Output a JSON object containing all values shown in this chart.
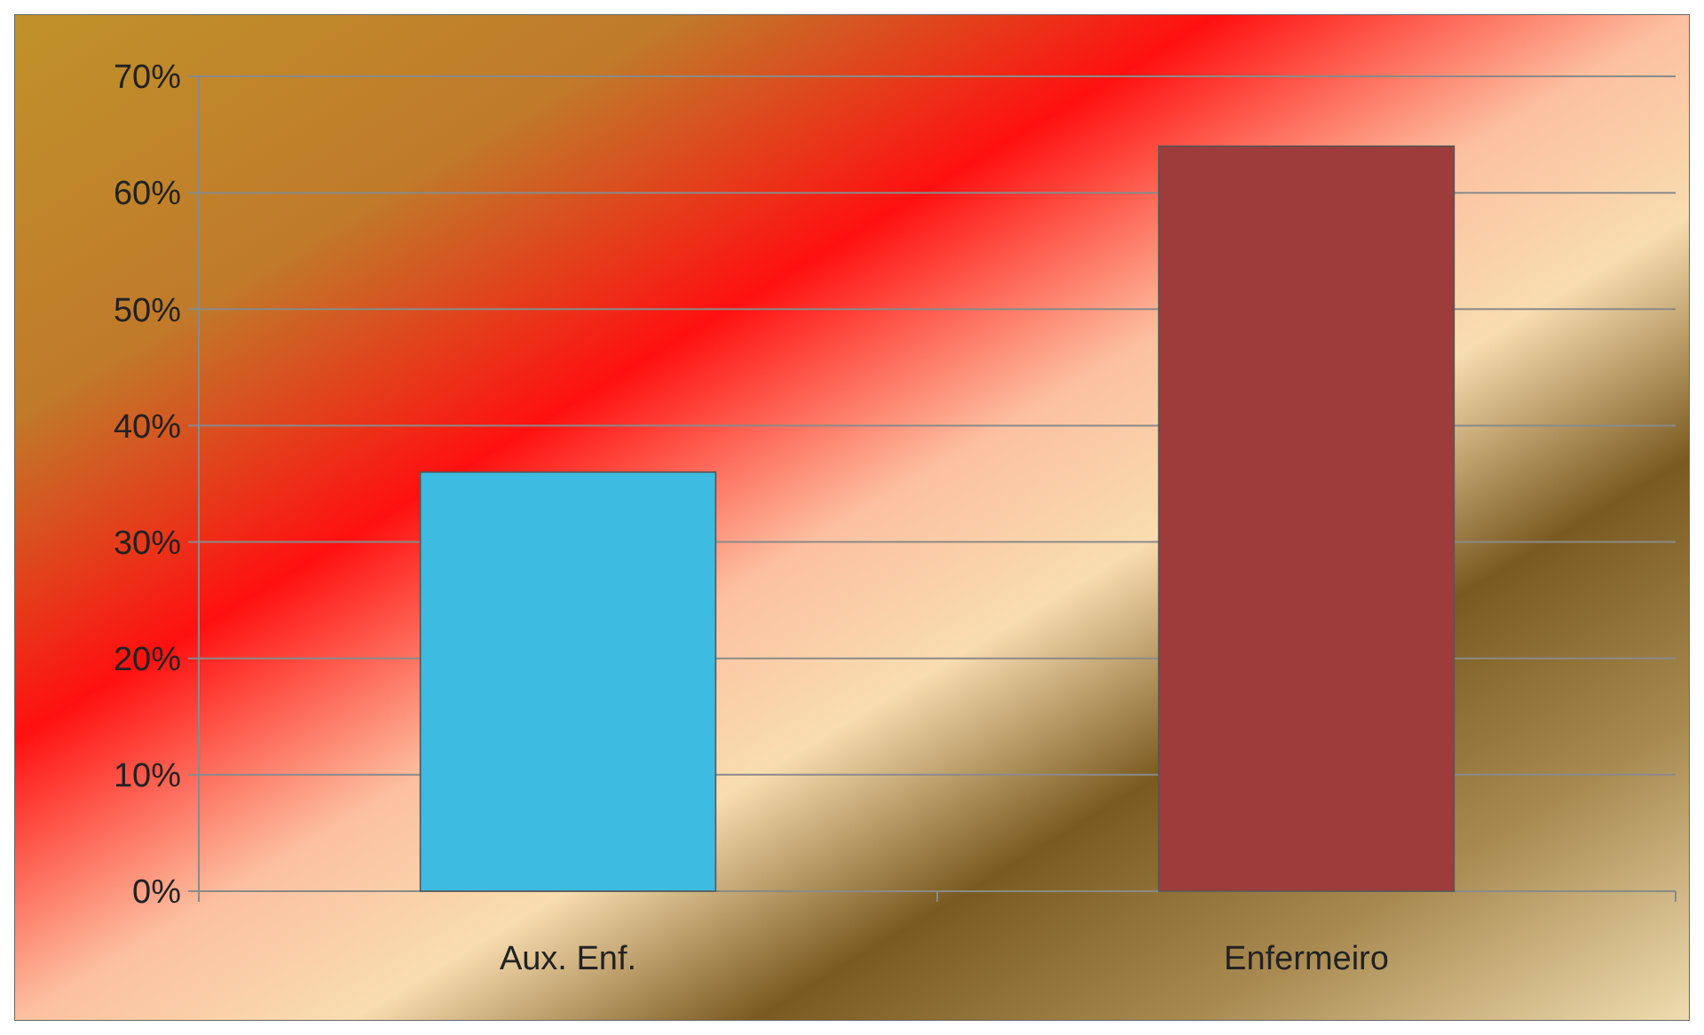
{
  "chart_data": {
    "type": "bar",
    "categories": [
      "Aux. Enf.",
      "Enfermeiro"
    ],
    "values": [
      36,
      64
    ],
    "colors": [
      "#3dbbe0",
      "#9e3c3c"
    ],
    "ylim": [
      0,
      70
    ],
    "yticks": [
      {
        "value": 0,
        "label": "0%"
      },
      {
        "value": 10,
        "label": "10%"
      },
      {
        "value": 20,
        "label": "20%"
      },
      {
        "value": 30,
        "label": "30%"
      },
      {
        "value": 40,
        "label": "40%"
      },
      {
        "value": 50,
        "label": "50%"
      },
      {
        "value": 60,
        "label": "60%"
      },
      {
        "value": 70,
        "label": "70%"
      }
    ],
    "grid": "y"
  }
}
